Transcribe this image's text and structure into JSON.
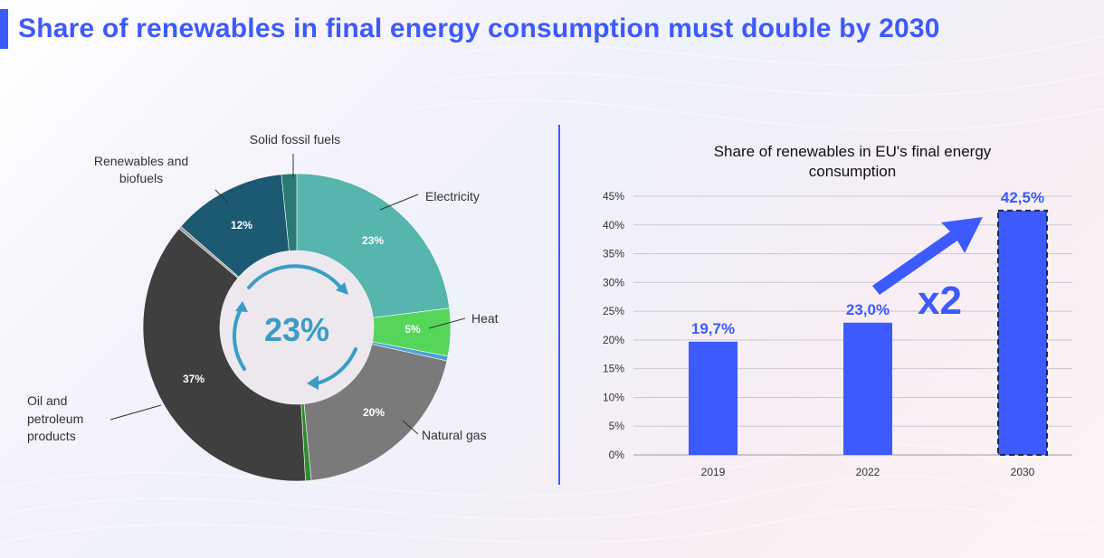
{
  "header": {
    "title": "Share of renewables in final energy consumption must double by 2030"
  },
  "chart_data": [
    {
      "type": "pie",
      "variant": "donut",
      "center_label": "23%",
      "slices": [
        {
          "name": "Electricity",
          "value": 23,
          "label": "23%",
          "color": "#56b5ad"
        },
        {
          "name": "Heat",
          "value": 5,
          "label": "5%",
          "color": "#55d65a"
        },
        {
          "name": "",
          "value": 0.5,
          "label": "",
          "color": "#4aa3d6"
        },
        {
          "name": "Natural gas",
          "value": 20,
          "label": "20%",
          "color": "#7a7a7a"
        },
        {
          "name": "",
          "value": 0.6,
          "label": "",
          "color": "#2e8b2e"
        },
        {
          "name": "Oil and petroleum products",
          "value": 37,
          "label": "37%",
          "color": "#3f3f3f"
        },
        {
          "name": "",
          "value": 0.3,
          "label": "",
          "color": "#9a9a9a"
        },
        {
          "name": "Renewables and biofuels",
          "value": 12,
          "label": "12%",
          "color": "#1c5a73"
        },
        {
          "name": "Solid fossil fuels",
          "value": 1.6,
          "label": "",
          "color": "#2a7a74"
        }
      ],
      "callouts": [
        {
          "name": "electricity",
          "lines": [
            "Electricity"
          ]
        },
        {
          "name": "heat",
          "lines": [
            "Heat"
          ]
        },
        {
          "name": "natural-gas",
          "lines": [
            "Natural gas"
          ]
        },
        {
          "name": "oil",
          "lines": [
            "Oil and",
            "petroleum",
            "products"
          ]
        },
        {
          "name": "renewables",
          "lines": [
            "Renewables and",
            "biofuels"
          ]
        },
        {
          "name": "solid-fossil",
          "lines": [
            "Solid fossil fuels"
          ]
        }
      ]
    },
    {
      "type": "bar",
      "title": [
        "Share of renewables in EU's final energy",
        "consumption"
      ],
      "categories": [
        "2019",
        "2022",
        "2030"
      ],
      "values": [
        19.7,
        23.0,
        42.5
      ],
      "value_labels": [
        "19,7%",
        "23,0%",
        "42,5%"
      ],
      "target_index": 2,
      "ylim": [
        0,
        45
      ],
      "yticks": [
        "0%",
        "5%",
        "10%",
        "15%",
        "20%",
        "25%",
        "30%",
        "35%",
        "40%",
        "45%"
      ],
      "ytick_values": [
        0,
        5,
        10,
        15,
        20,
        25,
        30,
        35,
        40,
        45
      ],
      "annotation": "x2",
      "bar_color": "#3d5afe"
    }
  ]
}
